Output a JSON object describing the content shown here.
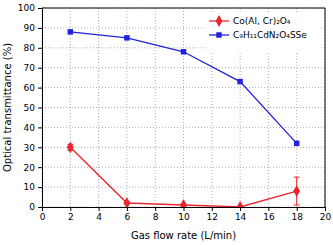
{
  "chart_data": {
    "type": "line",
    "x_label": "Gas flow rate (L/min)",
    "y_label": "Optical transmittance (%)",
    "x": [
      2,
      6,
      10,
      14,
      18
    ],
    "xlim": [
      0,
      20
    ],
    "xticks": [
      0,
      2,
      4,
      6,
      8,
      10,
      12,
      14,
      16,
      18,
      20
    ],
    "ylim": [
      0,
      100
    ],
    "yticks": [
      0,
      10,
      20,
      30,
      40,
      50,
      60,
      70,
      80,
      90,
      100
    ],
    "grid": true,
    "legend": "upper right",
    "series": [
      {
        "name": "Co(Al, Cr)₂O₄",
        "color": "#e8242c",
        "marker": "diamond",
        "line_style": "solid",
        "values": [
          30,
          2,
          1,
          0,
          8
        ],
        "errors": [
          1.5,
          0.5,
          0.5,
          0.3,
          7
        ]
      },
      {
        "name": "C₉H₁₁CdN₂O₄SSe",
        "color": "#2222dd",
        "marker": "square",
        "line_style": "solid",
        "values": [
          88,
          85,
          78,
          63,
          32
        ]
      }
    ]
  }
}
